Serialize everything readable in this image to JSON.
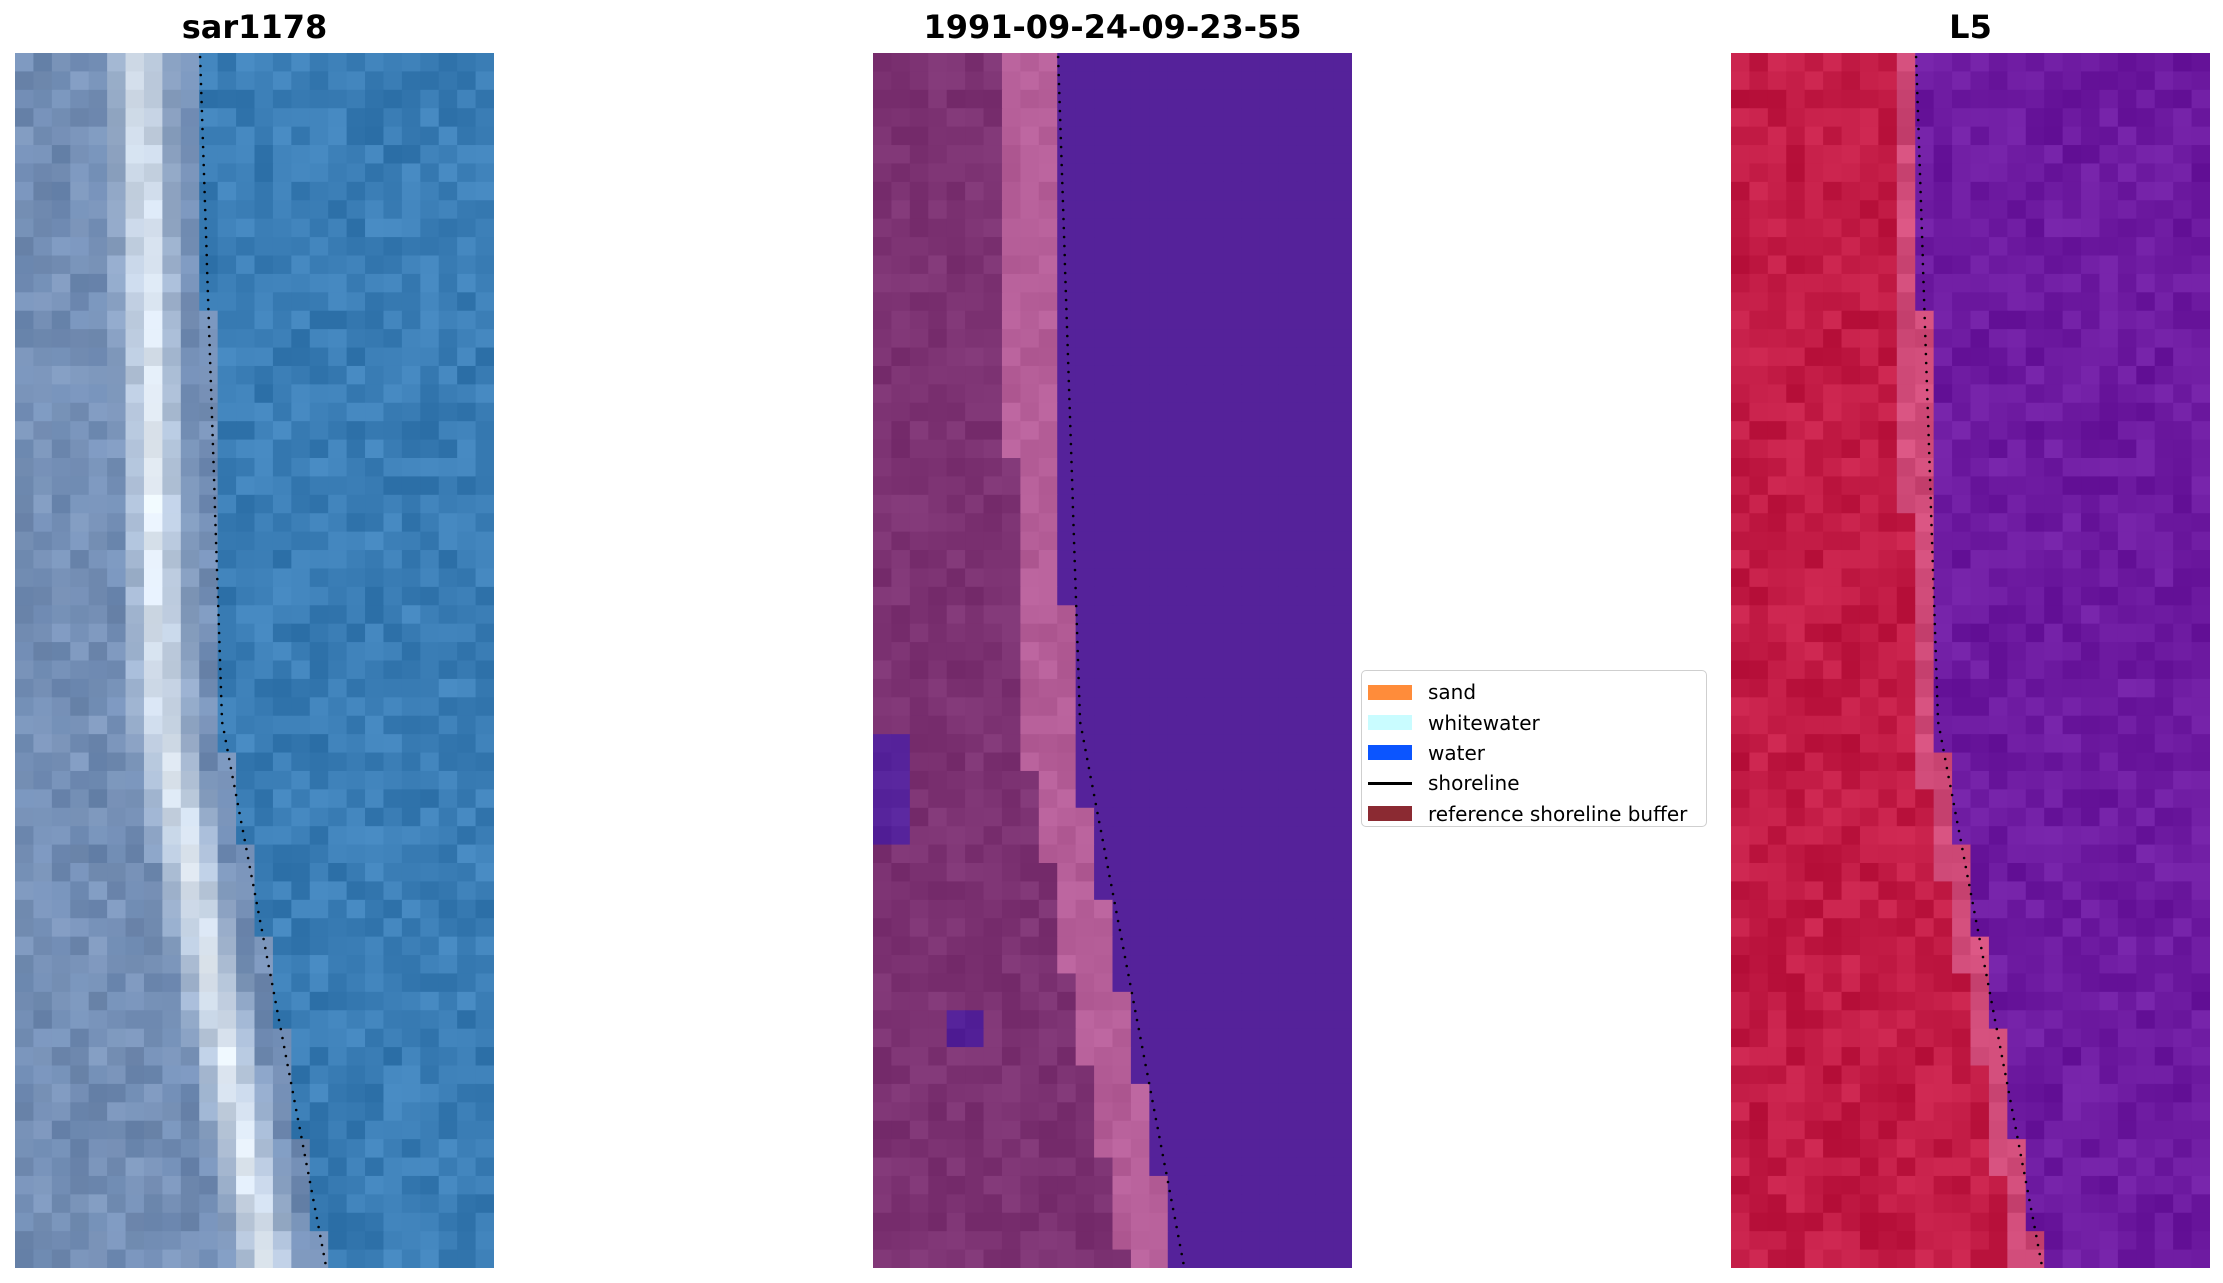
{
  "panels": [
    {
      "title": "sar1178"
    },
    {
      "title": "1991-09-24-09-23-55"
    },
    {
      "title": "L5"
    }
  ],
  "legend": {
    "items": [
      {
        "label": "sand",
        "color": "#ff8c3a",
        "kind": "patch"
      },
      {
        "label": "whitewater",
        "color": "#c9fcff",
        "kind": "patch"
      },
      {
        "label": "water",
        "color": "#0b55ff",
        "kind": "patch"
      },
      {
        "label": "shoreline",
        "color": "#000000",
        "kind": "line"
      },
      {
        "label": "reference shoreline buffer",
        "color": "#8b2a32",
        "kind": "patch"
      }
    ]
  },
  "colors": {
    "rgb_water": "#3a7db5",
    "rgb_sand": "#e8f0f8",
    "class_water": "#55229a",
    "class_sand": "#7c3272",
    "class_bright": "#b55e98",
    "false_water": "#6d1aa0",
    "false_sand": "#c21b45",
    "shoreline": "#000000"
  }
}
